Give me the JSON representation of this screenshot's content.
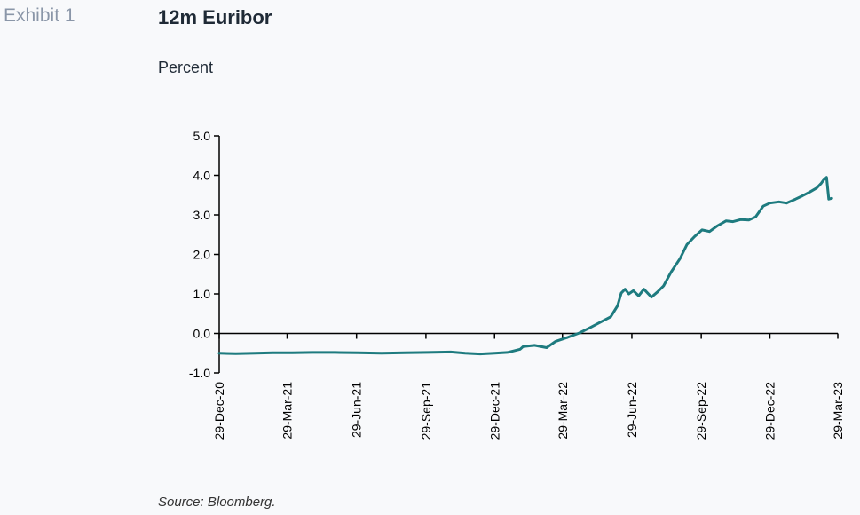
{
  "header": {
    "exhibit_label": "Exhibit 1",
    "title": "12m Euribor",
    "subtitle": "Percent"
  },
  "footer": {
    "source": "Source: Bloomberg."
  },
  "colors": {
    "line": "#1e7b7f",
    "axis": "#000000"
  },
  "chart_data": {
    "type": "line",
    "title": "12m Euribor",
    "ylabel": "Percent",
    "xlabel": "",
    "ylim": [
      -1.0,
      5.0
    ],
    "yticks": [
      -1.0,
      0.0,
      1.0,
      2.0,
      3.0,
      4.0,
      5.0
    ],
    "ytick_labels": [
      "-1.0",
      "0.0",
      "1.0",
      "2.0",
      "3.0",
      "4.0",
      "5.0"
    ],
    "xlim": [
      "2020-12-29",
      "2023-03-29"
    ],
    "xticks": [
      "2020-12-29",
      "2021-03-29",
      "2021-06-29",
      "2021-09-29",
      "2021-12-29",
      "2022-03-29",
      "2022-06-29",
      "2022-09-29",
      "2022-12-29",
      "2023-03-29"
    ],
    "xtick_labels": [
      "29-Dec-20",
      "29-Mar-21",
      "29-Jun-21",
      "29-Sep-21",
      "29-Dec-21",
      "29-Mar-22",
      "29-Jun-22",
      "29-Sep-22",
      "29-Dec-22",
      "29-Mar-23"
    ],
    "grid": false,
    "series": [
      {
        "x": [
          "2020-12-29",
          "2021-01-20",
          "2021-02-15",
          "2021-03-10",
          "2021-04-05",
          "2021-05-01",
          "2021-06-01",
          "2021-07-01",
          "2021-08-01",
          "2021-09-01",
          "2021-10-01",
          "2021-11-01",
          "2021-11-20",
          "2021-12-10",
          "2021-12-29",
          "2022-01-15",
          "2022-02-01",
          "2022-02-05",
          "2022-02-20",
          "2022-03-08",
          "2022-03-20",
          "2022-04-05",
          "2022-04-20",
          "2022-05-05",
          "2022-05-20",
          "2022-06-01",
          "2022-06-10",
          "2022-06-15",
          "2022-06-20",
          "2022-06-25",
          "2022-07-01",
          "2022-07-08",
          "2022-07-15",
          "2022-07-25",
          "2022-08-02",
          "2022-08-10",
          "2022-08-20",
          "2022-09-01",
          "2022-09-10",
          "2022-09-20",
          "2022-09-30",
          "2022-10-10",
          "2022-10-20",
          "2022-11-01",
          "2022-11-10",
          "2022-11-20",
          "2022-12-01",
          "2022-12-10",
          "2022-12-20",
          "2022-12-29",
          "2023-01-10",
          "2023-01-20",
          "2023-02-01",
          "2023-02-10",
          "2023-02-20",
          "2023-03-01",
          "2023-03-07",
          "2023-03-10",
          "2023-03-14",
          "2023-03-17",
          "2023-03-21"
        ],
        "y": [
          -0.5,
          -0.51,
          -0.5,
          -0.49,
          -0.49,
          -0.48,
          -0.48,
          -0.49,
          -0.5,
          -0.49,
          -0.48,
          -0.47,
          -0.5,
          -0.52,
          -0.5,
          -0.48,
          -0.4,
          -0.33,
          -0.3,
          -0.36,
          -0.2,
          -0.1,
          0.01,
          0.15,
          0.3,
          0.42,
          0.7,
          1.02,
          1.12,
          1.0,
          1.08,
          0.95,
          1.12,
          0.92,
          1.05,
          1.2,
          1.55,
          1.9,
          2.25,
          2.45,
          2.62,
          2.58,
          2.72,
          2.85,
          2.83,
          2.88,
          2.87,
          2.95,
          3.22,
          3.3,
          3.33,
          3.3,
          3.4,
          3.48,
          3.58,
          3.68,
          3.8,
          3.88,
          3.95,
          3.4,
          3.42
        ]
      }
    ]
  }
}
